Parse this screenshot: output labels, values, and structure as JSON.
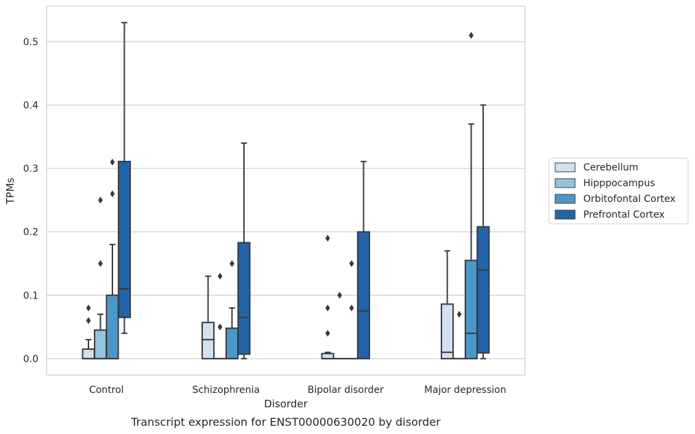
{
  "chart_data": {
    "type": "boxplot",
    "caption": "Transcript expression for ENST00000630020 by disorder",
    "xlabel": "Disorder",
    "ylabel": "TPMs",
    "ylim": [
      -0.026,
      0.556
    ],
    "yticks": [
      "0.0",
      "0.1",
      "0.2",
      "0.3",
      "0.4",
      "0.5"
    ],
    "grid": "horizontal",
    "legend_position": "right",
    "categories": [
      "Control",
      "Schizophrenia",
      "Bipolar disorder",
      "Major depression"
    ],
    "series": [
      {
        "name": "Cerebellum",
        "color": "#d0e1f2",
        "boxes": [
          {
            "whislo": 0.0,
            "q1": 0.0,
            "med": 0.0,
            "q3": 0.015,
            "whishi": 0.03,
            "fliers": [
              0.06,
              0.08
            ]
          },
          {
            "whislo": 0.0,
            "q1": 0.0,
            "med": 0.03,
            "q3": 0.057,
            "whishi": 0.13,
            "fliers": []
          },
          {
            "whislo": 0.0,
            "q1": 0.0,
            "med": 0.0,
            "q3": 0.008,
            "whishi": 0.01,
            "fliers": [
              0.04,
              0.08,
              0.19
            ]
          },
          {
            "whislo": 0.0,
            "q1": 0.0,
            "med": 0.01,
            "q3": 0.086,
            "whishi": 0.17,
            "fliers": []
          }
        ]
      },
      {
        "name": "Hipppocampus",
        "color": "#94c4df",
        "boxes": [
          {
            "whislo": 0.0,
            "q1": 0.0,
            "med": 0.0,
            "q3": 0.045,
            "whishi": 0.07,
            "fliers": [
              0.15,
              0.25
            ]
          },
          {
            "whislo": 0.0,
            "q1": 0.0,
            "med": 0.0,
            "q3": 0.0,
            "whishi": 0.0,
            "fliers": [
              0.05,
              0.13
            ]
          },
          {
            "whislo": 0.0,
            "q1": 0.0,
            "med": 0.0,
            "q3": 0.0,
            "whishi": 0.0,
            "fliers": [
              0.1
            ]
          },
          {
            "whislo": 0.0,
            "q1": 0.0,
            "med": 0.0,
            "q3": 0.0,
            "whishi": 0.0,
            "fliers": [
              0.07
            ]
          }
        ]
      },
      {
        "name": "Orbitofontal Cortex",
        "color": "#4a98c9",
        "boxes": [
          {
            "whislo": 0.0,
            "q1": 0.0,
            "med": 0.0,
            "q3": 0.1,
            "whishi": 0.18,
            "fliers": [
              0.26,
              0.31
            ]
          },
          {
            "whislo": 0.0,
            "q1": 0.0,
            "med": 0.0,
            "q3": 0.048,
            "whishi": 0.08,
            "fliers": [
              0.15
            ]
          },
          {
            "whislo": 0.0,
            "q1": 0.0,
            "med": 0.0,
            "q3": 0.0,
            "whishi": 0.0,
            "fliers": [
              0.08,
              0.15
            ]
          },
          {
            "whislo": 0.0,
            "q1": 0.0,
            "med": 0.04,
            "q3": 0.155,
            "whishi": 0.37,
            "fliers": [
              0.51
            ]
          }
        ]
      },
      {
        "name": "Prefrontal Cortex",
        "color": "#2264aa",
        "boxes": [
          {
            "whislo": 0.04,
            "q1": 0.065,
            "med": 0.11,
            "q3": 0.311,
            "whishi": 0.53,
            "fliers": []
          },
          {
            "whislo": 0.0,
            "q1": 0.007,
            "med": 0.065,
            "q3": 0.183,
            "whishi": 0.34,
            "fliers": []
          },
          {
            "whislo": 0.0,
            "q1": 0.0,
            "med": 0.075,
            "q3": 0.2,
            "whishi": 0.311,
            "fliers": []
          },
          {
            "whislo": 0.0,
            "q1": 0.009,
            "med": 0.14,
            "q3": 0.208,
            "whishi": 0.4,
            "fliers": []
          }
        ]
      }
    ]
  }
}
